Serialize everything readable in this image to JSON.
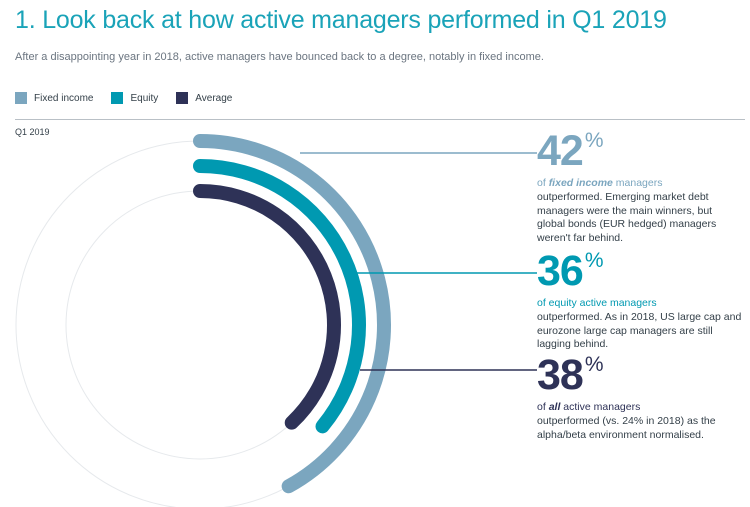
{
  "title": "1. Look back at how active managers performed in Q1 2019",
  "subtitle": "After a disappointing year in 2018, active managers have bounced back to a degree, notably in fixed income.",
  "period_label": "Q1 2019",
  "legend": [
    {
      "label": "Fixed income",
      "color": "#7ba6bf"
    },
    {
      "label": "Equity",
      "color": "#0099b1"
    },
    {
      "label": "Average",
      "color": "#2e3257"
    }
  ],
  "callouts": [
    {
      "value": "42",
      "unit": "%",
      "lead_pre": "of ",
      "lead_em": "fixed income",
      "lead_post": " managers",
      "body": "outperformed. Emerging market debt managers were the main winners, but global bonds (EUR hedged) managers weren't far behind.",
      "color": "#7ba6bf"
    },
    {
      "value": "36",
      "unit": "%",
      "lead_pre": "of equity active managers",
      "lead_em": "",
      "lead_post": "",
      "body": "outperformed. As in 2018, US large cap and eurozone large cap managers are still lagging behind.",
      "color": "#0099b1"
    },
    {
      "value": "38",
      "unit": "%",
      "lead_pre": "of ",
      "lead_em": "all",
      "lead_post": " active managers",
      "body": "outperformed (vs. 24% in 2018) as the alpha/beta environment normalised.",
      "color": "#2e3257"
    }
  ],
  "chart_data": {
    "type": "radial-bar",
    "title": "1. Look back at how active managers performed in Q1 2019",
    "period": "Q1 2019",
    "unit": "%",
    "max": 100,
    "series": [
      {
        "name": "Fixed income",
        "value": 42,
        "color": "#7ba6bf"
      },
      {
        "name": "Equity",
        "value": 36,
        "color": "#0099b1"
      },
      {
        "name": "Average",
        "value": 38,
        "color": "#2e3257"
      }
    ]
  }
}
